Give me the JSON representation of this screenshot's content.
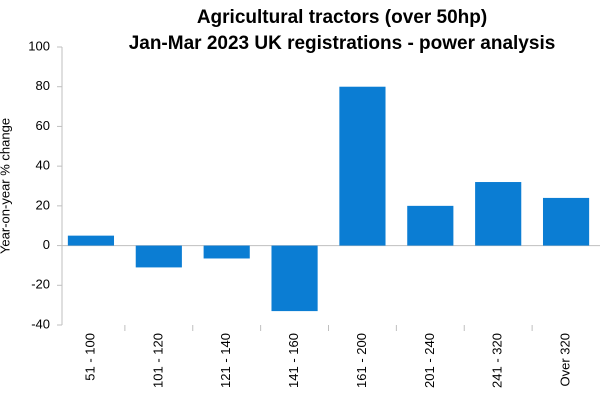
{
  "chart_data": {
    "type": "bar",
    "title": "Agricultural tractors (over 50hp)",
    "subtitle": "Jan-Mar 2023 UK registrations - power analysis",
    "y_label": "Year-on-year % change",
    "categories": [
      "51 - 100",
      "101 - 120",
      "121 - 140",
      "141 - 160",
      "161 - 200",
      "201 - 240",
      "241 - 320",
      "Over 320"
    ],
    "values": [
      5,
      -11,
      -6.5,
      -33,
      80,
      20,
      32,
      24
    ],
    "color": "#0b7dd3",
    "ylim": [
      -40,
      100
    ],
    "yticks": [
      -40,
      -20,
      0,
      20,
      40,
      60,
      80,
      100
    ],
    "grid": false
  }
}
